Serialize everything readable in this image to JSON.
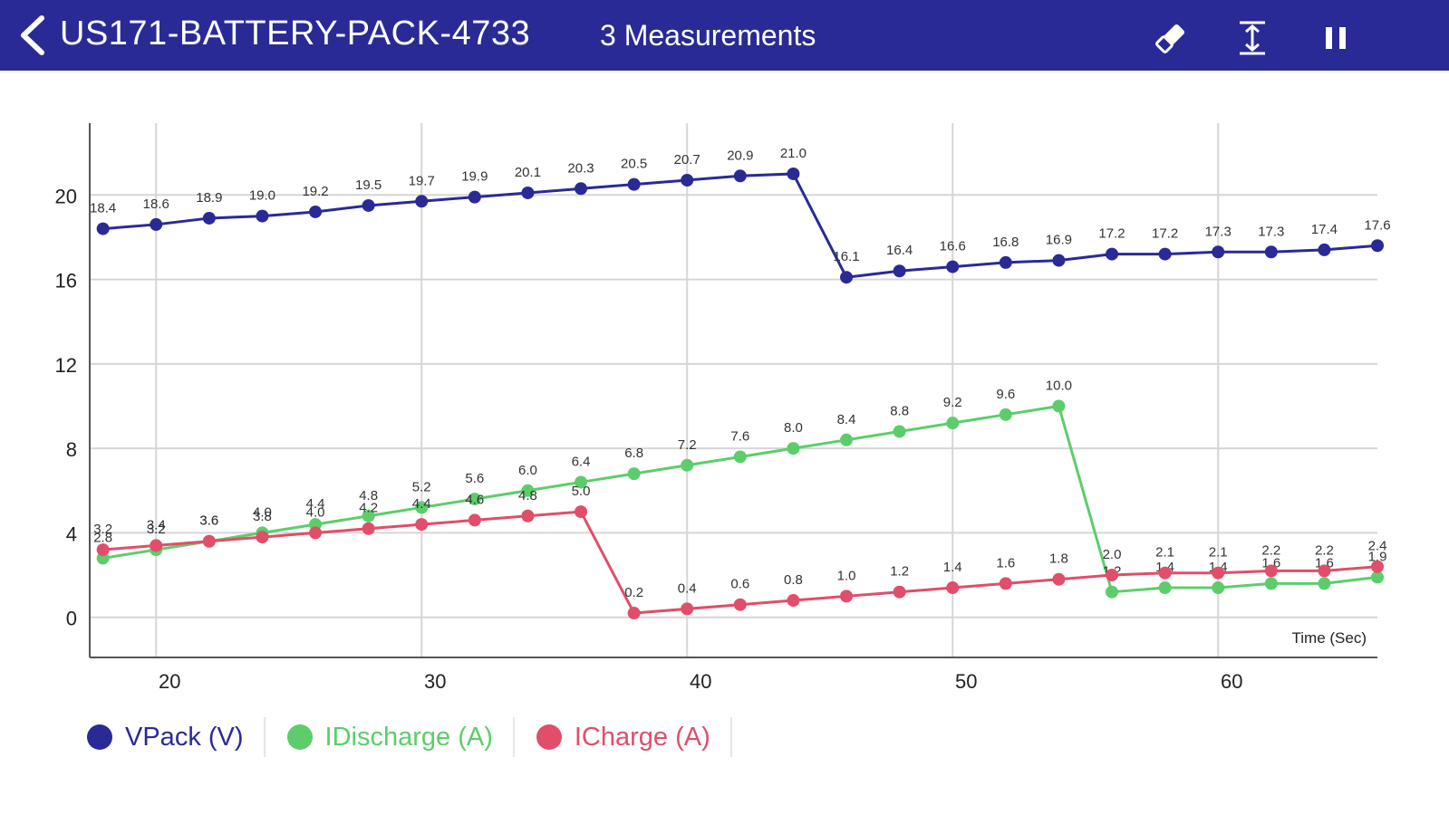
{
  "header": {
    "title": "US171-BATTERY-PACK-4733",
    "subtitle": "3 Measurements",
    "icons": [
      "back-chevron-icon",
      "eraser-icon",
      "fit-vertical-icon",
      "pause-icon"
    ],
    "background": "#2a2a96"
  },
  "legend": {
    "items": [
      {
        "label": "VPack (V)",
        "color": "#2a2a96"
      },
      {
        "label": "IDischarge (A)",
        "color": "#5ccd6a"
      },
      {
        "label": "ICharge (A)",
        "color": "#e04e6a"
      }
    ]
  },
  "chart_data": {
    "type": "line",
    "xlabel": "Time (Sec)",
    "ylabel": "",
    "xlim": [
      17.5,
      66
    ],
    "ylim": [
      -1.9,
      23.4
    ],
    "x_ticks": [
      20,
      30,
      40,
      50,
      60
    ],
    "y_ticks": [
      0,
      4,
      8,
      12,
      16,
      20
    ],
    "grid": true,
    "x": [
      18,
      20,
      22,
      24,
      26,
      28,
      30,
      32,
      34,
      36,
      38,
      40,
      42,
      44,
      46,
      48,
      50,
      52,
      54,
      56,
      58,
      60,
      62,
      64,
      66
    ],
    "series": [
      {
        "name": "VPack (V)",
        "color": "#2a2a96",
        "values": [
          18.4,
          18.6,
          18.9,
          19.0,
          19.2,
          19.5,
          19.7,
          19.9,
          20.1,
          20.3,
          20.5,
          20.7,
          20.9,
          21.0,
          16.1,
          16.4,
          16.6,
          16.8,
          16.9,
          17.2,
          17.2,
          17.3,
          17.3,
          17.4,
          17.6
        ]
      },
      {
        "name": "IDischarge (A)",
        "color": "#5ccd6a",
        "values": [
          2.8,
          3.2,
          3.6,
          4.0,
          4.4,
          4.8,
          5.2,
          5.6,
          6.0,
          6.4,
          6.8,
          7.2,
          7.6,
          8.0,
          8.4,
          8.8,
          9.2,
          9.6,
          10.0,
          1.2,
          1.4,
          1.4,
          1.6,
          1.6,
          1.9
        ]
      },
      {
        "name": "ICharge (A)",
        "color": "#e04e6a",
        "values": [
          3.2,
          3.4,
          3.6,
          3.8,
          4.0,
          4.2,
          4.4,
          4.6,
          4.8,
          5.0,
          0.2,
          0.4,
          0.6,
          0.8,
          1.0,
          1.2,
          1.4,
          1.6,
          1.8,
          2.0,
          2.1,
          2.1,
          2.2,
          2.2,
          2.4
        ]
      }
    ]
  }
}
